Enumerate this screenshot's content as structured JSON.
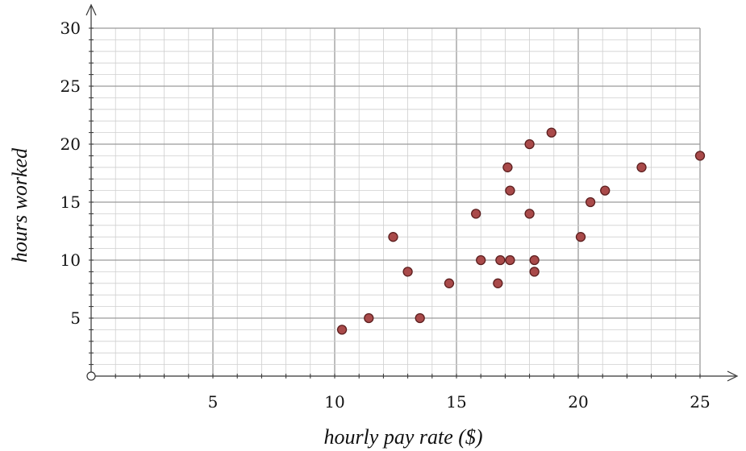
{
  "chart_data": {
    "type": "scatter",
    "title": "",
    "xlabel": "hourly pay rate ($)",
    "ylabel": "hours worked",
    "xlim": [
      0,
      26
    ],
    "ylim": [
      0,
      31
    ],
    "x_ticks": [
      5,
      10,
      15,
      20,
      25
    ],
    "y_ticks": [
      5,
      10,
      15,
      20,
      25,
      30
    ],
    "grid": true,
    "grid_minor_step": 1,
    "grid_major_step": 5,
    "marker_color": "#a94a4a",
    "marker_edge_color": "#5c1f1f",
    "points": [
      {
        "x": 10.3,
        "y": 4
      },
      {
        "x": 11.4,
        "y": 5
      },
      {
        "x": 12.4,
        "y": 12
      },
      {
        "x": 13.0,
        "y": 9
      },
      {
        "x": 13.5,
        "y": 5
      },
      {
        "x": 14.7,
        "y": 8
      },
      {
        "x": 15.8,
        "y": 14
      },
      {
        "x": 16.0,
        "y": 10
      },
      {
        "x": 16.7,
        "y": 8
      },
      {
        "x": 16.8,
        "y": 10
      },
      {
        "x": 17.1,
        "y": 18
      },
      {
        "x": 17.2,
        "y": 16
      },
      {
        "x": 17.2,
        "y": 10
      },
      {
        "x": 18.0,
        "y": 20
      },
      {
        "x": 18.0,
        "y": 14
      },
      {
        "x": 18.2,
        "y": 10
      },
      {
        "x": 18.2,
        "y": 9
      },
      {
        "x": 18.9,
        "y": 21
      },
      {
        "x": 20.1,
        "y": 12
      },
      {
        "x": 20.5,
        "y": 15
      },
      {
        "x": 21.1,
        "y": 16
      },
      {
        "x": 22.6,
        "y": 18
      },
      {
        "x": 25.0,
        "y": 19
      }
    ]
  }
}
